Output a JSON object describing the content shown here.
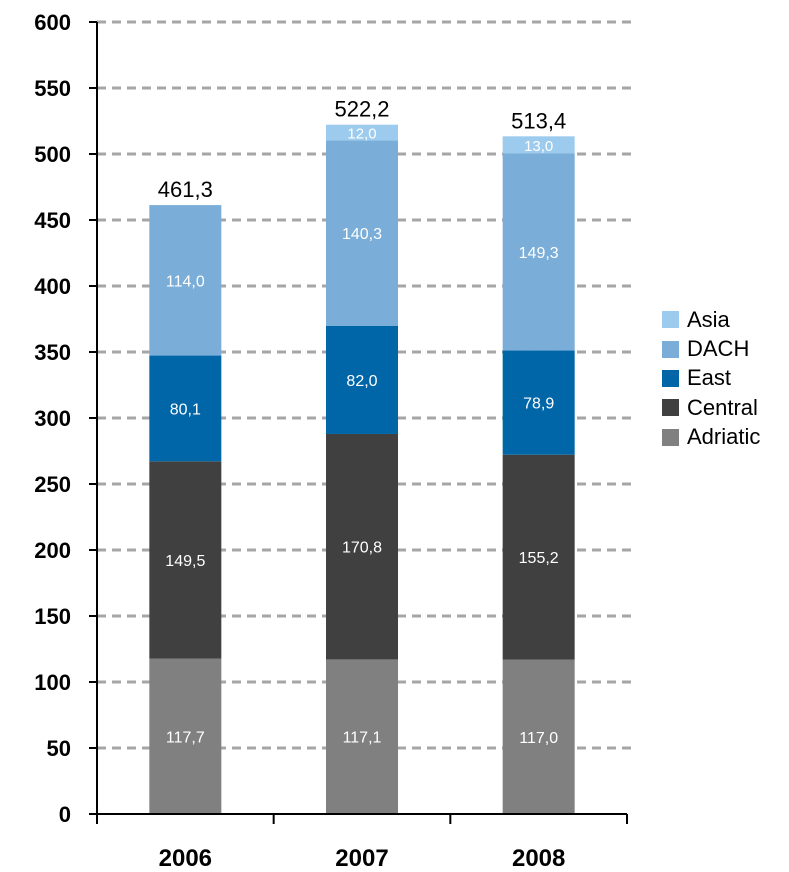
{
  "chart_data": {
    "type": "bar",
    "stacked": true,
    "categories": [
      "2006",
      "2007",
      "2008"
    ],
    "ylim": [
      0,
      600
    ],
    "yticks": [
      "0",
      "50",
      "100",
      "150",
      "200",
      "250",
      "300",
      "350",
      "400",
      "450",
      "500",
      "550",
      "600"
    ],
    "grid": true,
    "legend_position": "right",
    "series": [
      {
        "name": "Adriatic",
        "color": "#808080",
        "values": [
          117.7,
          117.1,
          117.0
        ],
        "labels": [
          "117,7",
          "117,1",
          "117,0"
        ]
      },
      {
        "name": "Central",
        "color": "#404040",
        "values": [
          149.5,
          170.8,
          155.2
        ],
        "labels": [
          "149,5",
          "170,8",
          "155,2"
        ]
      },
      {
        "name": "East",
        "color": "#0066a7",
        "values": [
          80.1,
          82.0,
          78.9
        ],
        "labels": [
          "80,1",
          "82,0",
          "78,9"
        ]
      },
      {
        "name": "DACH",
        "color": "#7aadd7",
        "values": [
          114.0,
          140.3,
          149.3
        ],
        "labels": [
          "114,0",
          "140,3",
          "149,3"
        ]
      },
      {
        "name": "Asia",
        "color": "#9dcbee",
        "values": [
          0,
          12.0,
          13.0
        ],
        "labels": [
          "",
          "12,0",
          "13,0"
        ]
      }
    ],
    "totals": [
      461.3,
      522.2,
      513.4
    ],
    "total_labels": [
      "461,3",
      "522,2",
      "513,4"
    ]
  }
}
